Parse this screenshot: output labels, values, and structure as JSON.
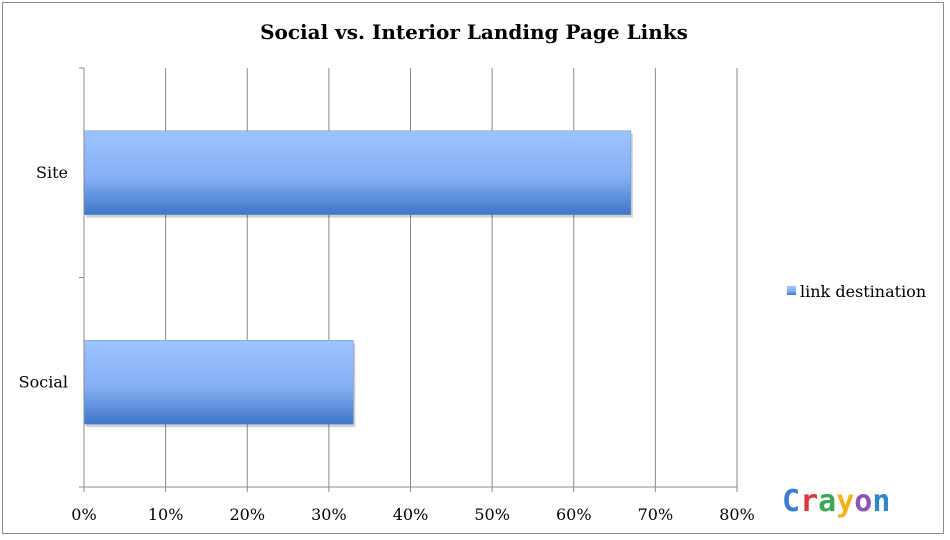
{
  "chart_data": {
    "type": "bar",
    "orientation": "horizontal",
    "title": "Social vs. Interior Landing Page Links",
    "xlabel": "",
    "ylabel": "",
    "categories": [
      "Site",
      "Social"
    ],
    "series": [
      {
        "name": "link destination",
        "values": [
          0.67,
          0.33
        ],
        "color": "#6f9fe8"
      }
    ],
    "xlim": [
      0,
      0.8
    ],
    "xticks": [
      "0%",
      "10%",
      "20%",
      "30%",
      "40%",
      "50%",
      "60%",
      "70%",
      "80%"
    ],
    "grid": true,
    "legend": "right"
  },
  "watermark": {
    "text": "Crayon",
    "letter_colors": [
      "#3a7bd5",
      "#d9363e",
      "#3aa757",
      "#f2b21c",
      "#8b55b8",
      "#2f86c9"
    ]
  }
}
